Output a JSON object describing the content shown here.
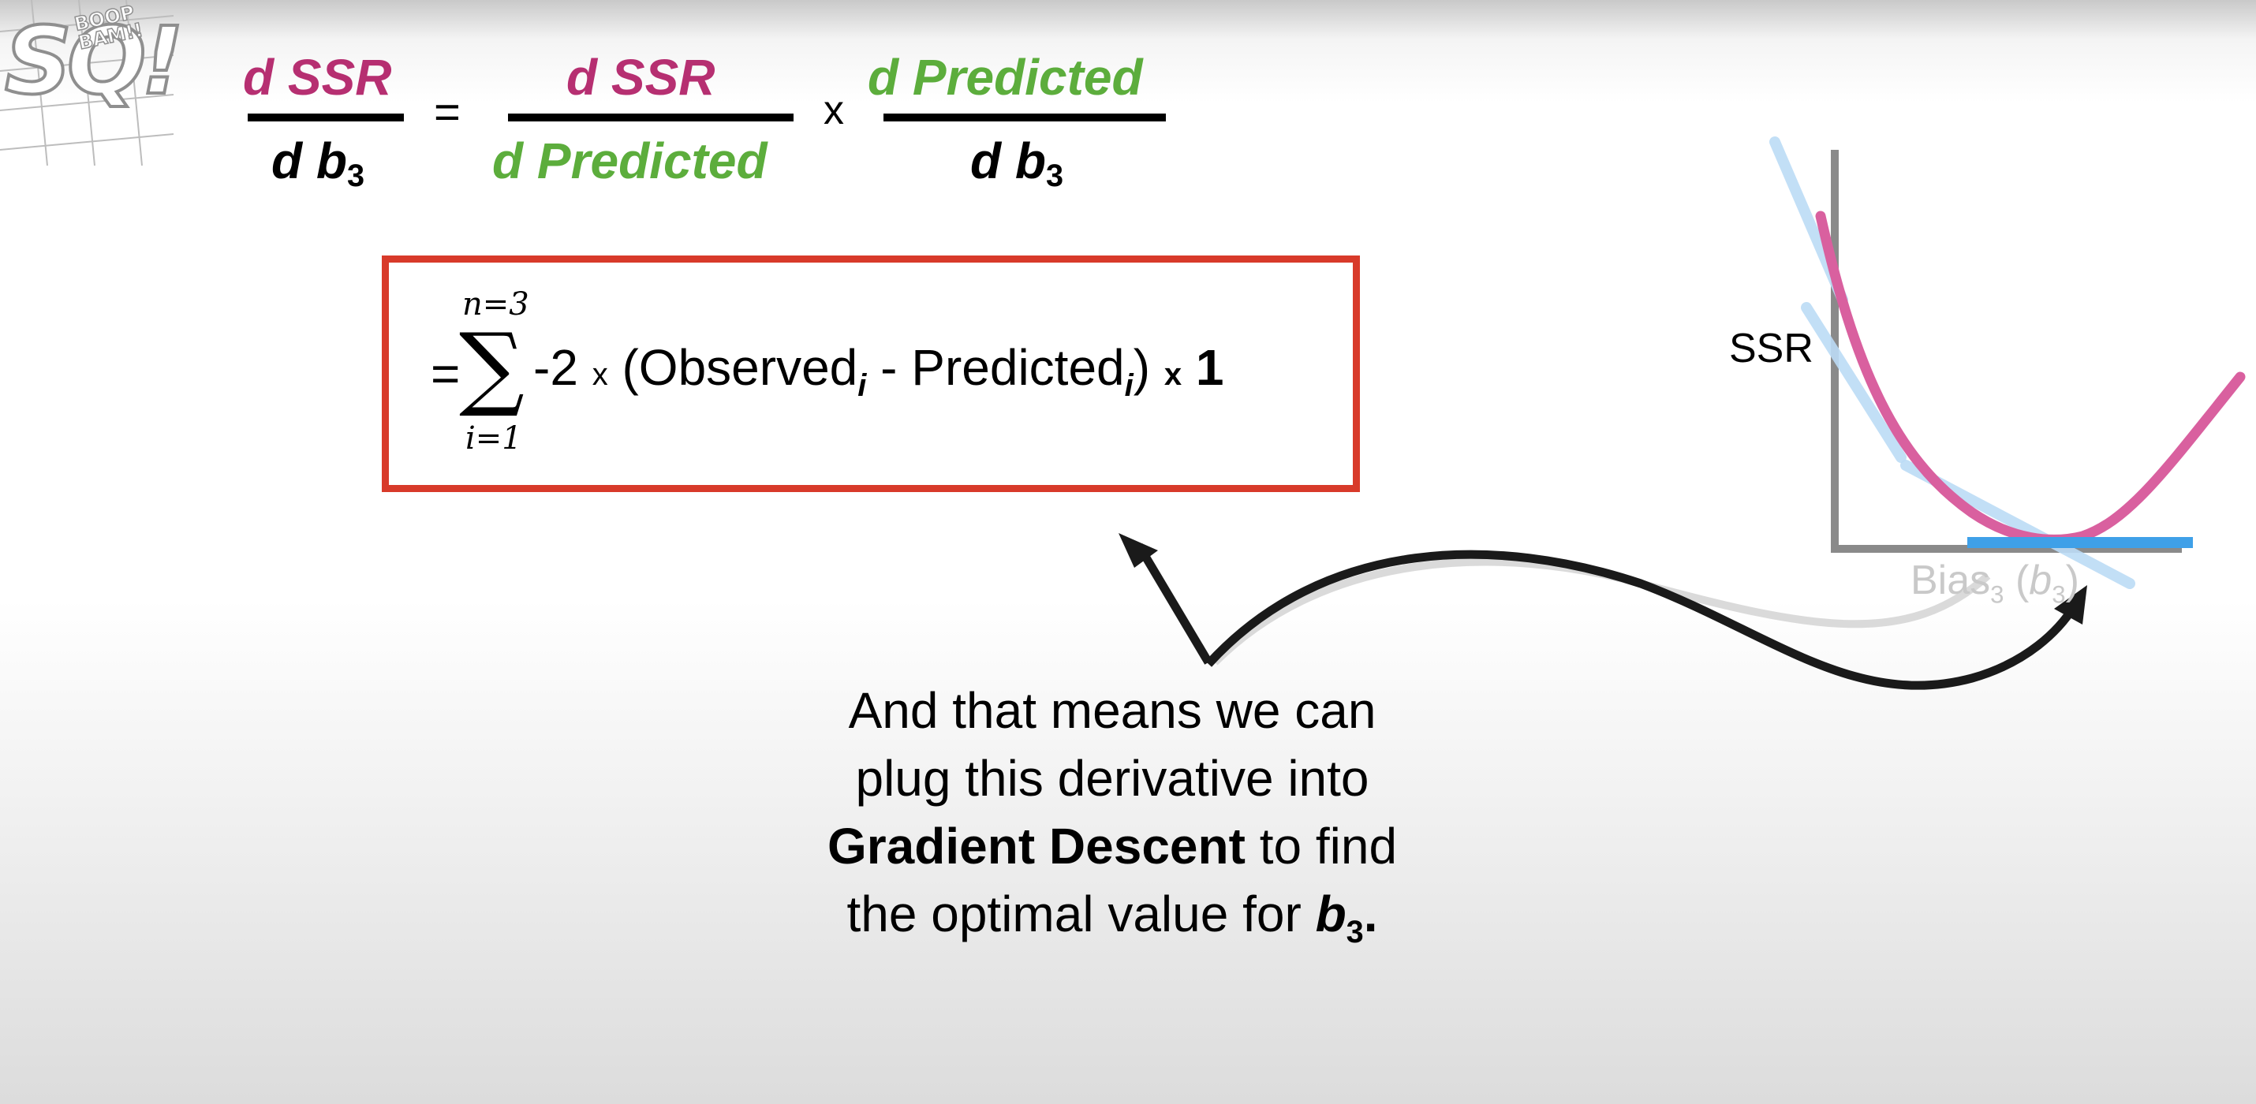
{
  "logo": {
    "text": "SQ!",
    "tagline": "BOOP BAM!!"
  },
  "equation": {
    "lhs": {
      "numerator": "d SSR",
      "denominator_d": "d b",
      "denominator_sub": "3"
    },
    "equals": "=",
    "term1": {
      "numerator": "d SSR",
      "denominator": "d Predicted"
    },
    "times": "x",
    "term2": {
      "numerator": "d Predicted",
      "denominator_d": "d b",
      "denominator_sub": "3"
    }
  },
  "formula": {
    "equals": "=",
    "sigma": "∑",
    "upper": "n=3",
    "lower": "i=1",
    "neg_two": "-2",
    "times1": "x",
    "open_paren": "(Observed",
    "obs_sub": "i",
    "minus": " - Predicted",
    "pred_sub": "i",
    "close_paren": ")",
    "times2": "x",
    "one": "1"
  },
  "caption": {
    "line1": "And that means we can",
    "line2": "plug this derivative into",
    "line3_bold": "Gradient Descent",
    "line3_rest": " to find",
    "line4_pre": "the optimal value for ",
    "line4_b": "b",
    "line4_sub": "3",
    "line4_end": "."
  },
  "graph": {
    "y_label": "SSR",
    "x_label_main": "Bias",
    "x_label_sub": "3",
    "x_label_paren_open": " (",
    "x_label_b": "b",
    "x_label_sub2": "3",
    "x_label_paren_close": ")"
  },
  "colors": {
    "pink": "#b62f71",
    "green": "#5cad3c",
    "box_border": "#d83a2a",
    "curve": "#d9609f",
    "tangent_light": "#bcdcf6",
    "tangent_final": "#3fa0e8",
    "axis": "#8a8a8a"
  }
}
